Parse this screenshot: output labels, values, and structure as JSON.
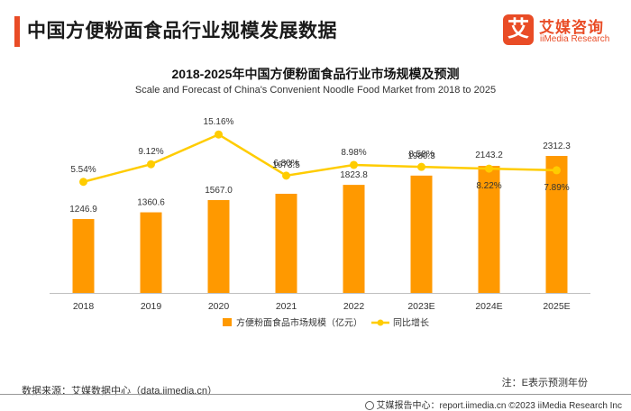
{
  "page": {
    "title": "中国方便粉面食品行业规模发展数据"
  },
  "logo": {
    "mark": "艾",
    "cn": "艾媒咨询",
    "en": "iiMedia Research"
  },
  "footer": {
    "source": "数据来源：艾媒数据中心（data.iimedia.cn）",
    "note": "注：E表示预测年份",
    "credit": "艾媒报告中心：report.iimedia.cn   ©2023  iiMedia Research  Inc"
  },
  "colors": {
    "accent": "#e94c26",
    "bar": "#ff9900",
    "line": "#ffcc00"
  },
  "chart_data": {
    "type": "bar",
    "title": "2018-2025年中国方便粉面食品行业市场规模及预测",
    "subtitle": "Scale and Forecast of China's Convenient Noodle Food Market from 2018 to 2025",
    "categories": [
      "2018",
      "2019",
      "2020",
      "2021",
      "2022",
      "2023E",
      "2024E",
      "2025E"
    ],
    "series": [
      {
        "name": "方便粉面食品市场规模（亿元）",
        "type": "bar",
        "values": [
          1246.9,
          1360.6,
          1567.0,
          1673.5,
          1823.8,
          1980.3,
          2143.2,
          2312.3
        ],
        "labels": [
          "1246.9",
          "1360.6",
          "1567.0",
          "1673.5",
          "1823.8",
          "1980.3",
          "2143.2",
          "2312.3"
        ]
      },
      {
        "name": "同比增长",
        "type": "line",
        "values": [
          5.54,
          9.12,
          15.16,
          6.8,
          8.98,
          8.58,
          8.22,
          7.89
        ],
        "labels": [
          "5.54%",
          "9.12%",
          "15.16%",
          "6.80%",
          "8.98%",
          "8.58%",
          "8.22%",
          "7.89%"
        ]
      }
    ],
    "legend": "bottom-center",
    "grid": false
  }
}
